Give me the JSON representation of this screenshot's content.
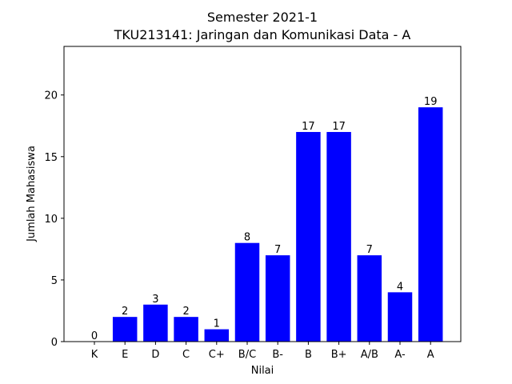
{
  "chart_data": {
    "type": "bar",
    "title_line1": "Semester 2021-1",
    "title_line2": "TKU213141: Jaringan dan Komunikasi Data - A",
    "xlabel": "Nilai",
    "ylabel": "Jumlah Mahasiswa",
    "categories": [
      "K",
      "E",
      "D",
      "C",
      "C+",
      "B/C",
      "B-",
      "B",
      "B+",
      "A/B",
      "A-",
      "A"
    ],
    "values": [
      0,
      2,
      3,
      2,
      1,
      8,
      7,
      17,
      17,
      7,
      4,
      19
    ],
    "ylim": [
      0,
      23.94
    ],
    "yticks": [
      0,
      5,
      10,
      15,
      20
    ],
    "bar_color": "#0000ff",
    "grid": false
  }
}
